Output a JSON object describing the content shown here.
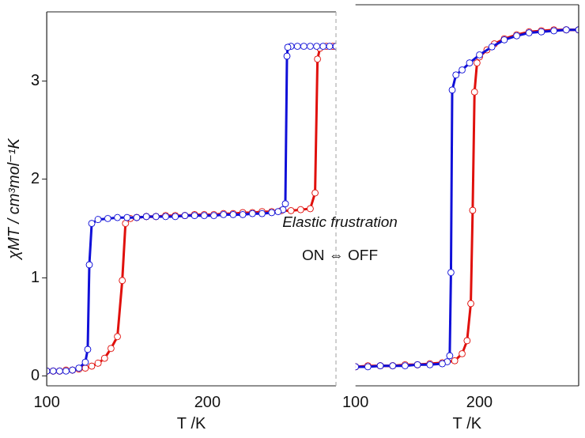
{
  "chart_data": [
    {
      "type": "line",
      "xlabel": "T /K",
      "ylabel": "χMT / cm³mol⁻¹K",
      "xlim": [
        100,
        280
      ],
      "xticks": [
        100,
        200
      ],
      "ylim": [
        -0.1,
        3.7
      ],
      "yticks": [
        0,
        1,
        2,
        3
      ],
      "grid": false,
      "annotations": [
        "Elastic frustration",
        "ON ⇔ OFF"
      ],
      "series": [
        {
          "color": "#1010d8",
          "marker": "circle",
          "line_style": "solid",
          "x": [
            280,
            276,
            272,
            268,
            264,
            260,
            256,
            252,
            250,
            249.5,
            248.5,
            247,
            244,
            240,
            234,
            228,
            222,
            216,
            210,
            204,
            198,
            192,
            186,
            180,
            174,
            168,
            162,
            156,
            150,
            144,
            138,
            132,
            128,
            126.5,
            125.5,
            124,
            120,
            116,
            112,
            108,
            104,
            100
          ],
          "values": [
            3.35,
            3.35,
            3.35,
            3.35,
            3.35,
            3.35,
            3.35,
            3.35,
            3.34,
            3.25,
            1.75,
            1.69,
            1.67,
            1.66,
            1.65,
            1.65,
            1.64,
            1.64,
            1.64,
            1.63,
            1.63,
            1.63,
            1.63,
            1.62,
            1.62,
            1.62,
            1.62,
            1.61,
            1.61,
            1.61,
            1.6,
            1.59,
            1.55,
            1.13,
            0.27,
            0.14,
            0.08,
            0.06,
            0.05,
            0.05,
            0.05,
            0.05
          ]
        },
        {
          "color": "#e0100c",
          "marker": "circle",
          "line_style": "solid",
          "x": [
            100,
            104,
            108,
            112,
            116,
            120,
            124,
            128,
            132,
            136,
            140,
            144,
            147,
            149,
            152,
            156,
            162,
            168,
            174,
            180,
            186,
            192,
            198,
            204,
            210,
            216,
            222,
            228,
            234,
            240,
            246,
            252,
            258,
            264,
            267,
            268.5,
            270,
            274,
            278,
            280
          ],
          "values": [
            0.05,
            0.05,
            0.05,
            0.06,
            0.06,
            0.07,
            0.08,
            0.1,
            0.13,
            0.18,
            0.28,
            0.4,
            0.97,
            1.55,
            1.6,
            1.61,
            1.62,
            1.62,
            1.63,
            1.63,
            1.63,
            1.64,
            1.64,
            1.64,
            1.65,
            1.65,
            1.66,
            1.66,
            1.67,
            1.67,
            1.68,
            1.68,
            1.69,
            1.7,
            1.86,
            3.22,
            3.33,
            3.35,
            3.35,
            3.35
          ]
        }
      ]
    },
    {
      "type": "line",
      "xlabel": "T /K",
      "xlim": [
        100,
        280
      ],
      "xticks": [
        100,
        200
      ],
      "ylim": [
        -0.1,
        3.7
      ],
      "grid": false,
      "tick_labels": "x",
      "series": [
        {
          "color": "#1010d8",
          "marker": "circle",
          "line_style": "solid",
          "x": [
            280,
            270,
            260,
            250,
            240,
            230,
            220,
            210,
            200,
            192,
            186,
            181,
            178,
            177,
            176,
            174,
            170,
            160,
            150,
            140,
            130,
            120,
            110,
            100
          ],
          "values": [
            3.45,
            3.45,
            3.44,
            3.43,
            3.42,
            3.39,
            3.35,
            3.28,
            3.2,
            3.12,
            3.05,
            3.0,
            2.85,
            1.03,
            0.2,
            0.14,
            0.12,
            0.11,
            0.11,
            0.1,
            0.1,
            0.1,
            0.09,
            0.09
          ]
        },
        {
          "color": "#e0100c",
          "marker": "circle",
          "line_style": "solid",
          "x": [
            100,
            110,
            120,
            130,
            140,
            150,
            160,
            170,
            180,
            186,
            190,
            193,
            194.5,
            196,
            198,
            200,
            206,
            212,
            220,
            230,
            240,
            250,
            260,
            270,
            280
          ],
          "values": [
            0.09,
            0.1,
            0.1,
            0.1,
            0.11,
            0.11,
            0.12,
            0.13,
            0.15,
            0.22,
            0.35,
            0.72,
            1.65,
            2.83,
            3.12,
            3.18,
            3.25,
            3.31,
            3.36,
            3.4,
            3.43,
            3.44,
            3.45,
            3.45,
            3.45
          ]
        }
      ]
    }
  ]
}
